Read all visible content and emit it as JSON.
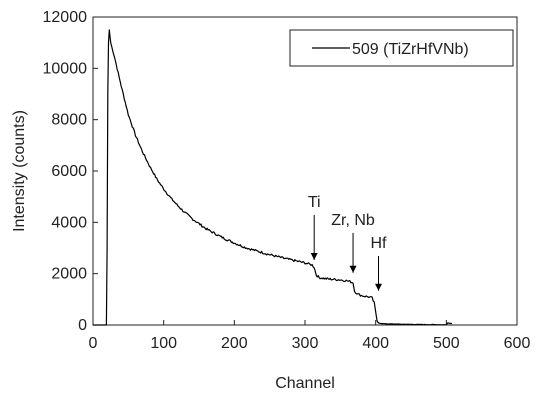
{
  "chart_data": {
    "type": "line",
    "xlabel": "Channel",
    "ylabel": "Intensity (counts)",
    "xlim": [
      0,
      600
    ],
    "ylim": [
      0,
      12000
    ],
    "xticks": [
      0,
      100,
      200,
      300,
      400,
      500,
      600
    ],
    "yticks": [
      0,
      2000,
      4000,
      6000,
      8000,
      10000,
      12000
    ],
    "grid": false,
    "legend_position": "top-right",
    "series": [
      {
        "name": "509 (TiZrHfVNb)",
        "color": "#000000",
        "x": [
          0,
          10,
          15,
          19,
          20,
          21,
          22,
          23,
          25,
          30,
          40,
          50,
          60,
          70,
          80,
          90,
          100,
          110,
          120,
          130,
          140,
          150,
          160,
          170,
          180,
          190,
          200,
          210,
          220,
          230,
          240,
          250,
          260,
          270,
          280,
          290,
          300,
          305,
          310,
          313,
          316,
          320,
          330,
          340,
          350,
          355,
          360,
          365,
          368,
          370,
          375,
          380,
          385,
          390,
          395,
          398,
          400,
          402,
          404,
          406,
          408,
          410,
          420,
          440,
          460,
          480,
          500,
          502,
          505,
          508
        ],
        "y": [
          0,
          0,
          0,
          0,
          3000,
          9000,
          11000,
          11500,
          11000,
          10500,
          9300,
          8200,
          7400,
          6750,
          6200,
          5700,
          5300,
          4950,
          4650,
          4380,
          4150,
          3950,
          3750,
          3600,
          3450,
          3320,
          3200,
          3080,
          2980,
          2900,
          2820,
          2740,
          2670,
          2600,
          2540,
          2480,
          2420,
          2380,
          2340,
          2250,
          1950,
          1850,
          1800,
          1780,
          1760,
          1740,
          1720,
          1680,
          1650,
          1320,
          1200,
          1150,
          1120,
          1100,
          1050,
          850,
          500,
          150,
          90,
          70,
          60,
          50,
          40,
          30,
          20,
          15,
          10,
          80,
          70,
          60
        ]
      }
    ],
    "annotations": [
      {
        "text": "Ti",
        "x": 313,
        "y": 2300,
        "label_y": 4600
      },
      {
        "text": "Zr, Nb",
        "x": 368,
        "y": 1800,
        "label_y": 3900
      },
      {
        "text": "Hf",
        "x": 404,
        "y": 1100,
        "label_y": 3000
      }
    ]
  }
}
